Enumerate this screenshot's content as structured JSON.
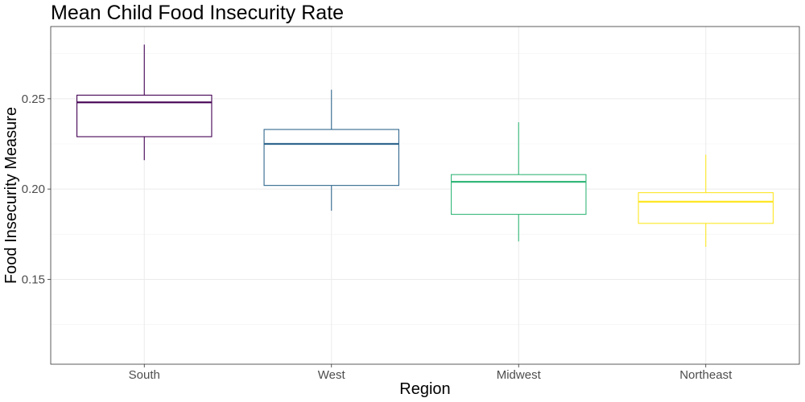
{
  "chart_data": {
    "type": "boxplot",
    "title": "Mean Child Food Insecurity Rate",
    "xlabel": "Region",
    "ylabel": "Food Insecurity Measure",
    "categories": [
      "South",
      "West",
      "Midwest",
      "Northeast"
    ],
    "ylim": [
      0.103,
      0.29
    ],
    "yticks": [
      0.15,
      0.2,
      0.25
    ],
    "ytick_labels": [
      "0.15",
      "0.20",
      "0.25"
    ],
    "grid": true,
    "legend": "none",
    "boxes": [
      {
        "category": "South",
        "whisker_low": 0.216,
        "q1": 0.229,
        "median": 0.248,
        "q3": 0.252,
        "whisker_high": 0.28,
        "color": "#440154"
      },
      {
        "category": "West",
        "whisker_low": 0.188,
        "q1": 0.202,
        "median": 0.225,
        "q3": 0.233,
        "whisker_high": 0.255,
        "color": "#31688e"
      },
      {
        "category": "Midwest",
        "whisker_low": 0.171,
        "q1": 0.186,
        "median": 0.204,
        "q3": 0.208,
        "whisker_high": 0.237,
        "color": "#35b779"
      },
      {
        "category": "Northeast",
        "whisker_low": 0.168,
        "q1": 0.181,
        "median": 0.193,
        "q3": 0.198,
        "whisker_high": 0.219,
        "color": "#fde725"
      }
    ]
  }
}
